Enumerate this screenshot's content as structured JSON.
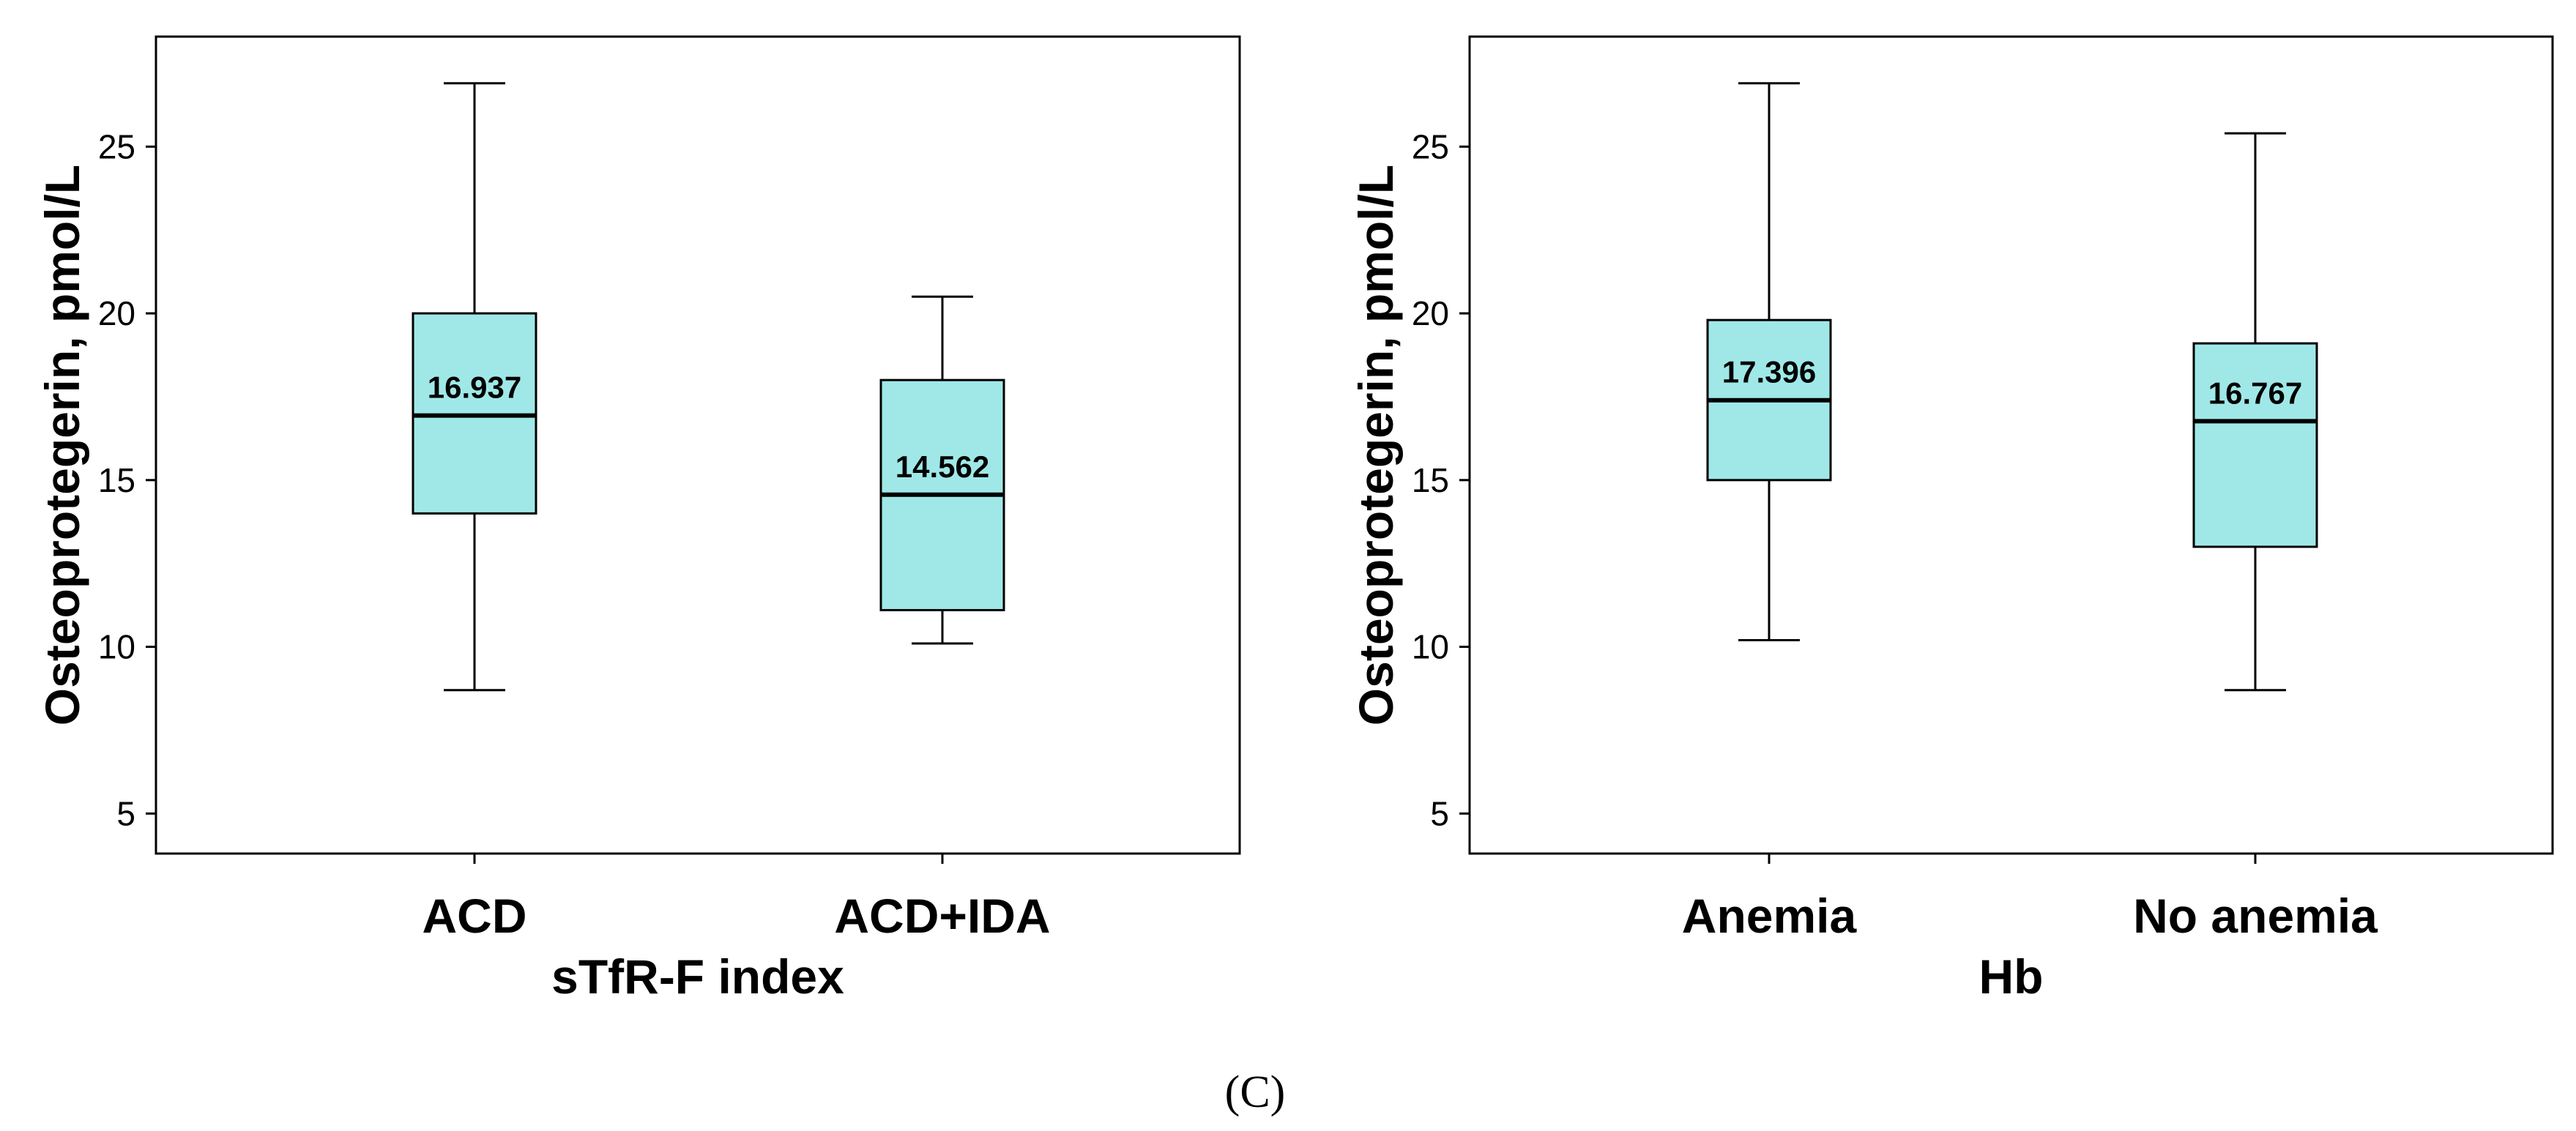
{
  "chart_data": [
    {
      "type": "box",
      "title": "",
      "xlabel": "sTfR-F index",
      "ylabel": "Osteoprotegerin, pmol/L",
      "ylim": [
        3.8,
        28.3
      ],
      "yticks": [
        5,
        10,
        15,
        20,
        25
      ],
      "ytick_labels": [
        "5",
        "10",
        "15",
        "20",
        "25"
      ],
      "grid": false,
      "box_color": "#a0e8e8",
      "categories": [
        "ACD",
        "ACD+IDA"
      ],
      "boxes": [
        {
          "category": "ACD",
          "whisker_low": 8.7,
          "q1": 14.0,
          "median": 16.937,
          "q3": 20.0,
          "whisker_high": 26.9,
          "median_label": "16.937"
        },
        {
          "category": "ACD+IDA",
          "whisker_low": 10.1,
          "q1": 11.1,
          "median": 14.562,
          "q3": 18.0,
          "whisker_high": 20.5,
          "median_label": "14.562"
        }
      ]
    },
    {
      "type": "box",
      "title": "",
      "xlabel": "Hb",
      "ylabel": "Osteoprotegerin, pmol/L",
      "ylim": [
        3.8,
        28.3
      ],
      "yticks": [
        5,
        10,
        15,
        20,
        25
      ],
      "ytick_labels": [
        "5",
        "10",
        "15",
        "20",
        "25"
      ],
      "grid": false,
      "box_color": "#a0e8e8",
      "categories": [
        "Anemia",
        "No anemia"
      ],
      "boxes": [
        {
          "category": "Anemia",
          "whisker_low": 10.2,
          "q1": 15.0,
          "median": 17.396,
          "q3": 19.8,
          "whisker_high": 26.9,
          "median_label": "17.396"
        },
        {
          "category": "No anemia",
          "whisker_low": 8.7,
          "q1": 13.0,
          "median": 16.767,
          "q3": 19.1,
          "whisker_high": 25.4,
          "median_label": "16.767"
        }
      ]
    }
  ],
  "caption": "(C)"
}
